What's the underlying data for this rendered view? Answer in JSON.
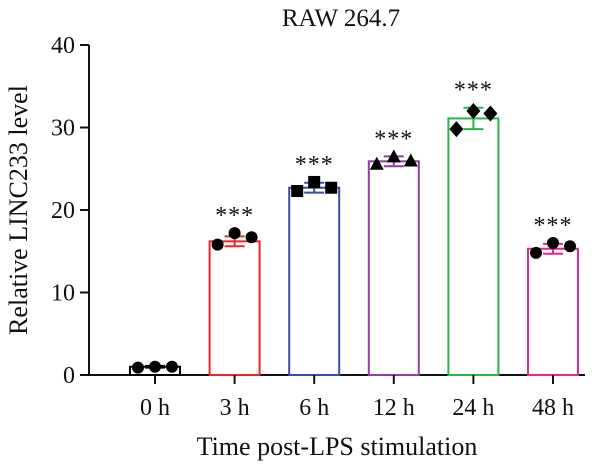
{
  "chart_data": {
    "type": "bar",
    "title": "RAW 264.7",
    "xlabel": "Time post-LPS stimulation",
    "ylabel": "Relative LINC233 level",
    "ylim": [
      0,
      40
    ],
    "yticks": [
      "0",
      "10",
      "20",
      "30",
      "40"
    ],
    "categories": [
      "0 h",
      "3 h",
      "6 h",
      "12 h",
      "24 h",
      "48 h"
    ],
    "values": [
      1.0,
      16.2,
      22.7,
      25.9,
      31.1,
      15.3
    ],
    "errors": [
      0.1,
      0.6,
      0.6,
      0.6,
      1.3,
      0.6
    ],
    "points": [
      [
        0.9,
        1.0,
        1.0
      ],
      [
        15.8,
        17.2,
        16.7
      ],
      [
        22.3,
        23.4,
        22.7
      ],
      [
        25.6,
        26.5,
        26.0
      ],
      [
        29.8,
        32.0,
        31.7
      ],
      [
        14.8,
        16.0,
        15.6
      ]
    ],
    "markers": [
      "circle",
      "circle",
      "square",
      "triangle",
      "diamond",
      "circle"
    ],
    "annotations": [
      "",
      "***",
      "***",
      "***",
      "***",
      "***"
    ],
    "colors": [
      "#000000",
      "#e8262a",
      "#3a4fa3",
      "#8f3fa0",
      "#2db34a",
      "#e8268c"
    ],
    "grid": false,
    "legend": "none"
  }
}
